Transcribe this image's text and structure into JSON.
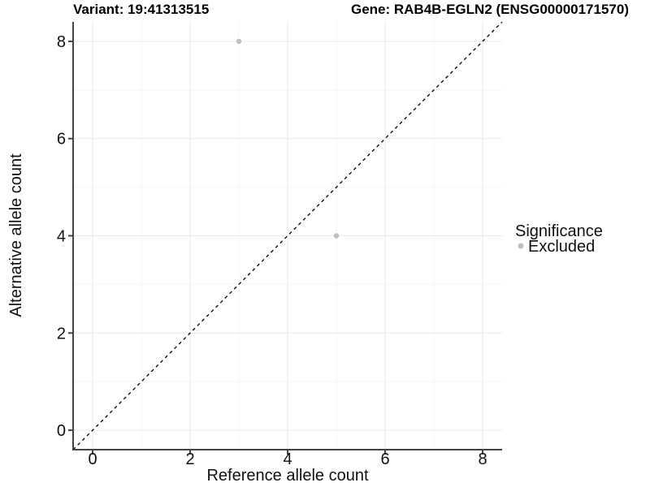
{
  "titles": {
    "variant": "Variant: 19:41313515",
    "gene": "Gene: RAB4B-EGLN2 (ENSG00000171570)"
  },
  "axes": {
    "x": {
      "label": "Reference allele count",
      "tick_labels": [
        "0",
        "2",
        "4",
        "6",
        "8"
      ]
    },
    "y": {
      "label": "Alternative allele count",
      "tick_labels": [
        "0",
        "2",
        "4",
        "6",
        "8"
      ]
    }
  },
  "legend": {
    "title": "Significance",
    "items": [
      {
        "label": "Excluded",
        "color": "#bebebe"
      }
    ]
  },
  "colors": {
    "point": "#bebebe",
    "axis_line": "#444444",
    "grid_major": "#e8e8e8",
    "grid_minor": "#f4f4f4",
    "reference_line": "#000000",
    "text": "#111111"
  },
  "chart_data": {
    "type": "scatter",
    "title": "Variant: 19:41313515 — Gene: RAB4B-EGLN2 (ENSG00000171570)",
    "xlabel": "Reference allele count",
    "ylabel": "Alternative allele count",
    "xlim": [
      -0.4,
      8.4
    ],
    "ylim": [
      -0.4,
      8.4
    ],
    "xticks": [
      0,
      2,
      4,
      6,
      8
    ],
    "yticks": [
      0,
      2,
      4,
      6,
      8
    ],
    "grid": true,
    "legend_position": "right",
    "series": [
      {
        "name": "Excluded",
        "color": "#bebebe",
        "points": [
          {
            "x": 3,
            "y": 8
          },
          {
            "x": 5,
            "y": 4
          }
        ]
      }
    ],
    "reference_line": {
      "type": "identity",
      "slope": 1,
      "intercept": 0,
      "style": "dashed",
      "color": "#000000"
    }
  }
}
